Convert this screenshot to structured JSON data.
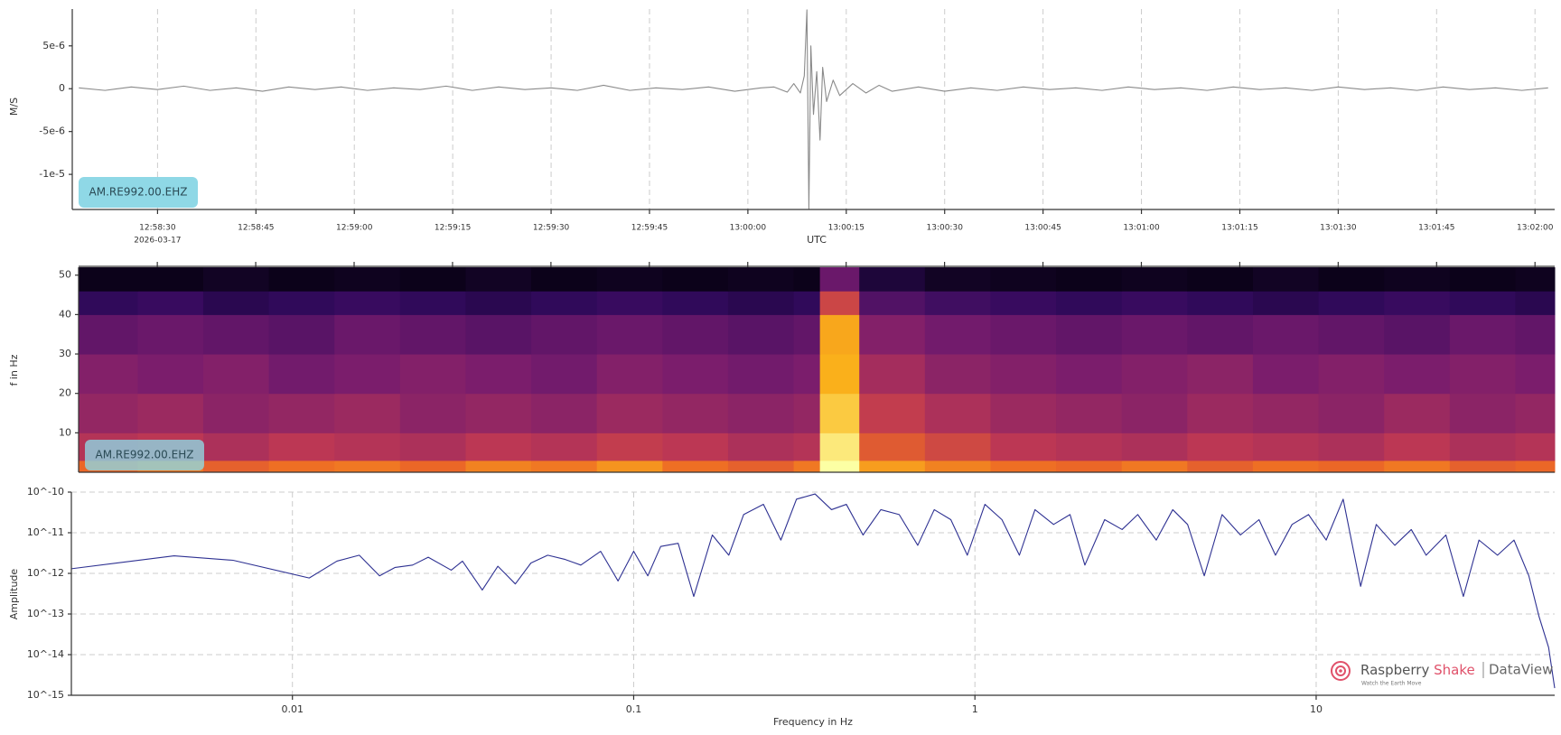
{
  "chart_data": [
    {
      "type": "line",
      "y_label": "M/S",
      "x_label": "UTC",
      "date_label": "2026-03-17",
      "annotation": "AM.RE992.00.EHZ",
      "color": "#8a8a8a",
      "grid": "x",
      "xlim": [
        46697,
        46923
      ],
      "ylim": [
        -1.41e-05,
        9.3e-06
      ],
      "xticks": [
        {
          "value": 46710,
          "label": "12:58:30"
        },
        {
          "value": 46725,
          "label": "12:58:45"
        },
        {
          "value": 46740,
          "label": "12:59:00"
        },
        {
          "value": 46755,
          "label": "12:59:15"
        },
        {
          "value": 46770,
          "label": "12:59:30"
        },
        {
          "value": 46785,
          "label": "12:59:45"
        },
        {
          "value": 46800,
          "label": "13:00:00"
        },
        {
          "value": 46815,
          "label": "13:00:15"
        },
        {
          "value": 46830,
          "label": "13:00:30"
        },
        {
          "value": 46845,
          "label": "13:00:45"
        },
        {
          "value": 46860,
          "label": "13:01:00"
        },
        {
          "value": 46875,
          "label": "13:01:15"
        },
        {
          "value": 46890,
          "label": "13:01:30"
        },
        {
          "value": 46905,
          "label": "13:01:45"
        },
        {
          "value": 46920,
          "label": "13:02:00"
        }
      ],
      "yticks": [
        {
          "value": -1e-05,
          "label": "-1e-5"
        },
        {
          "value": -5e-06,
          "label": "-5e-6"
        },
        0,
        {
          "value": 5e-06,
          "label": "5e-6"
        }
      ],
      "x": [
        46698,
        46702,
        46706,
        46710,
        46714,
        46718,
        46722,
        46726,
        46730,
        46734,
        46738,
        46742,
        46746,
        46750,
        46754,
        46758,
        46762,
        46766,
        46770,
        46774,
        46778,
        46782,
        46786,
        46790,
        46794,
        46798,
        46802,
        46804,
        46806,
        46807,
        46808,
        46808.6,
        46809,
        46809.3,
        46809.6,
        46810,
        46810.5,
        46811,
        46811.4,
        46812,
        46813,
        46814,
        46816,
        46818,
        46820,
        46822,
        46826,
        46830,
        46834,
        46838,
        46842,
        46846,
        46850,
        46854,
        46858,
        46862,
        46866,
        46870,
        46874,
        46878,
        46882,
        46886,
        46890,
        46894,
        46898,
        46902,
        46906,
        46910,
        46914,
        46918,
        46922
      ],
      "values": [
        1e-07,
        -2e-07,
        2e-07,
        -1e-07,
        3e-07,
        -2e-07,
        1e-07,
        -3e-07,
        2e-07,
        -1e-07,
        2e-07,
        -2e-07,
        1e-07,
        -1e-07,
        3e-07,
        -2e-07,
        2e-07,
        -1e-07,
        1e-07,
        -2e-07,
        4e-07,
        -2e-07,
        1e-07,
        -1e-07,
        2e-07,
        -3e-07,
        1e-07,
        2e-07,
        -4e-07,
        6e-07,
        -5e-07,
        1.5e-06,
        9.2e-06,
        -1.4e-05,
        5e-06,
        -3e-06,
        2e-06,
        -6e-06,
        2.5e-06,
        -1.5e-06,
        1e-06,
        -8e-07,
        6e-07,
        -5e-07,
        4e-07,
        -3e-07,
        2e-07,
        -3e-07,
        1e-07,
        -2e-07,
        2e-07,
        -1e-07,
        1e-07,
        -2e-07,
        2e-07,
        -1e-07,
        1e-07,
        -2e-07,
        2e-07,
        -1e-07,
        1e-07,
        -2e-07,
        2e-07,
        -1e-07,
        1e-07,
        -2e-07,
        2e-07,
        -1e-07,
        1e-07,
        -2e-07,
        1e-07
      ]
    },
    {
      "type": "heatmap",
      "y_label": "f in Hz",
      "annotation": "AM.RE992.00.EHZ",
      "xlim": [
        46698,
        46923
      ],
      "ylim": [
        0,
        52
      ],
      "yticks": [
        10,
        20,
        30,
        40,
        50
      ],
      "zlim": [
        0,
        1
      ],
      "colorscale": [
        "#000004",
        "#320a5e",
        "#781c6d",
        "#bc3754",
        "#ed6925",
        "#fbb61a",
        "#fcffa4"
      ],
      "x_bins": [
        46698,
        46707,
        46717,
        46727,
        46737,
        46747,
        46757,
        46767,
        46777,
        46787,
        46797,
        46807,
        46811,
        46817,
        46827,
        46837,
        46847,
        46857,
        46867,
        46877,
        46887,
        46897,
        46907,
        46917,
        46923
      ],
      "y_bins": [
        0,
        3,
        10,
        20,
        30,
        40,
        46,
        52
      ],
      "values": [
        [
          0.66,
          0.7,
          0.64,
          0.68,
          0.7,
          0.66,
          0.72,
          0.7,
          0.76,
          0.68,
          0.64,
          0.7,
          1.0,
          0.78,
          0.72,
          0.68,
          0.66,
          0.7,
          0.64,
          0.68,
          0.66,
          0.7,
          0.64,
          0.66
        ],
        [
          0.48,
          0.5,
          0.46,
          0.5,
          0.48,
          0.46,
          0.5,
          0.48,
          0.52,
          0.5,
          0.46,
          0.48,
          0.95,
          0.62,
          0.56,
          0.5,
          0.48,
          0.46,
          0.5,
          0.48,
          0.46,
          0.5,
          0.46,
          0.48
        ],
        [
          0.4,
          0.42,
          0.38,
          0.4,
          0.42,
          0.38,
          0.4,
          0.38,
          0.42,
          0.4,
          0.38,
          0.4,
          0.88,
          0.52,
          0.46,
          0.42,
          0.4,
          0.38,
          0.42,
          0.4,
          0.38,
          0.42,
          0.38,
          0.4
        ],
        [
          0.36,
          0.34,
          0.36,
          0.32,
          0.34,
          0.36,
          0.34,
          0.32,
          0.36,
          0.34,
          0.32,
          0.34,
          0.82,
          0.44,
          0.38,
          0.36,
          0.34,
          0.36,
          0.38,
          0.34,
          0.36,
          0.34,
          0.36,
          0.34
        ],
        [
          0.28,
          0.3,
          0.28,
          0.26,
          0.3,
          0.28,
          0.26,
          0.28,
          0.3,
          0.28,
          0.26,
          0.28,
          0.8,
          0.36,
          0.32,
          0.3,
          0.28,
          0.3,
          0.28,
          0.3,
          0.28,
          0.26,
          0.3,
          0.28
        ],
        [
          0.16,
          0.18,
          0.14,
          0.16,
          0.18,
          0.16,
          0.14,
          0.16,
          0.18,
          0.16,
          0.14,
          0.16,
          0.55,
          0.24,
          0.2,
          0.18,
          0.16,
          0.18,
          0.16,
          0.14,
          0.16,
          0.18,
          0.16,
          0.14
        ],
        [
          0.04,
          0.04,
          0.06,
          0.04,
          0.05,
          0.04,
          0.06,
          0.04,
          0.05,
          0.04,
          0.05,
          0.04,
          0.3,
          0.1,
          0.06,
          0.05,
          0.04,
          0.05,
          0.04,
          0.06,
          0.04,
          0.05,
          0.04,
          0.05
        ]
      ]
    },
    {
      "type": "line",
      "y_label": "Amplitude",
      "x_label": "Frequency in Hz",
      "color": "#2e3192",
      "grid": "both",
      "xscale": "log",
      "yscale": "log",
      "xlim": [
        0.00225,
        50
      ],
      "ylim": [
        1e-15,
        1e-10
      ],
      "xticks": [
        0.01,
        0.1,
        1,
        10
      ],
      "yticks": [
        {
          "value": 1e-15,
          "label": "10^-15"
        },
        {
          "value": 1e-14,
          "label": "10^-14"
        },
        {
          "value": 1e-13,
          "label": "10^-13"
        },
        {
          "value": 1e-12,
          "label": "10^-12"
        },
        {
          "value": 1e-11,
          "label": "10^-11"
        },
        {
          "value": 1e-10,
          "label": "10^-10"
        }
      ],
      "x": [
        0.00225,
        0.0045,
        0.0067,
        0.0112,
        0.0135,
        0.0157,
        0.018,
        0.02,
        0.0225,
        0.025,
        0.0292,
        0.0315,
        0.036,
        0.04,
        0.045,
        0.05,
        0.056,
        0.063,
        0.07,
        0.08,
        0.09,
        0.1,
        0.11,
        0.12,
        0.135,
        0.15,
        0.17,
        0.19,
        0.21,
        0.24,
        0.27,
        0.3,
        0.34,
        0.38,
        0.42,
        0.47,
        0.53,
        0.6,
        0.68,
        0.76,
        0.85,
        0.95,
        1.07,
        1.2,
        1.35,
        1.5,
        1.7,
        1.9,
        2.1,
        2.4,
        2.7,
        3,
        3.4,
        3.8,
        4.2,
        4.7,
        5.3,
        6,
        6.8,
        7.6,
        8.5,
        9.5,
        10.7,
        12,
        13.5,
        15,
        17,
        19,
        21,
        24,
        27,
        30,
        34,
        38,
        42,
        45,
        48,
        50
      ],
      "values": [
        1.3e-12,
        2.7e-12,
        2.1e-12,
        7.7e-13,
        2e-12,
        2.8e-12,
        8.7e-13,
        1.4e-12,
        1.6e-12,
        2.5e-12,
        1.2e-12,
        2e-12,
        3.9e-13,
        1.5e-12,
        5.5e-13,
        1.8e-12,
        2.8e-12,
        2.2e-12,
        1.6e-12,
        3.5e-12,
        6.5e-13,
        3.5e-12,
        8.7e-13,
        4.6e-12,
        5.5e-12,
        2.7e-13,
        8.8e-12,
        2.8e-12,
        2.8e-11,
        5e-11,
        6.6e-12,
        6.7e-11,
        9e-11,
        3.7e-11,
        5e-11,
        8.8e-12,
        3.7e-11,
        2.8e-11,
        4.9e-12,
        3.7e-11,
        2.1e-11,
        2.8e-12,
        5e-11,
        2.1e-11,
        2.8e-12,
        3.7e-11,
        1.6e-11,
        2.8e-11,
        1.6e-12,
        2.1e-11,
        1.2e-11,
        2.8e-11,
        6.6e-12,
        3.7e-11,
        1.6e-11,
        8.7e-13,
        2.8e-11,
        8.8e-12,
        2.1e-11,
        2.8e-12,
        1.6e-11,
        2.8e-11,
        6.6e-12,
        6.7e-11,
        4.8e-13,
        1.6e-11,
        4.9e-12,
        1.2e-11,
        2.8e-12,
        8.8e-12,
        2.7e-13,
        6.6e-12,
        2.8e-12,
        6.6e-12,
        8.7e-13,
        8.6e-14,
        1.5e-14,
        1.5e-15
      ]
    }
  ],
  "branding": {
    "name_1": "Raspberry",
    "name_2": "Shake",
    "product": "DataView",
    "tagline": "Watch the Earth Move"
  }
}
